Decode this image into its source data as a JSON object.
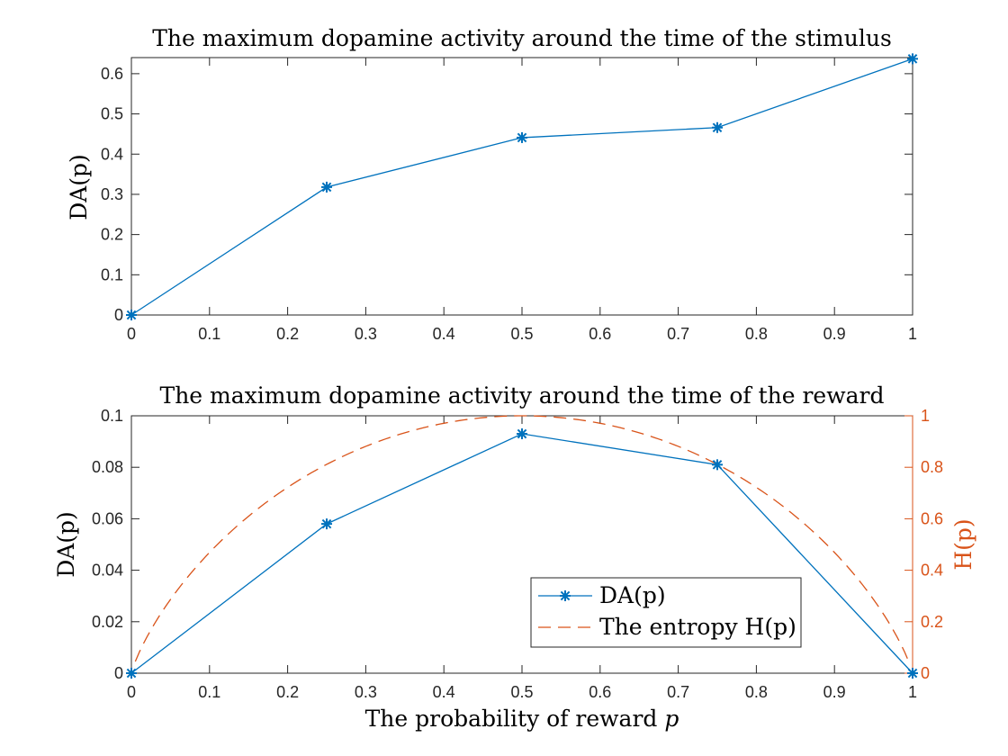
{
  "colors": {
    "da": "#0072BD",
    "entropy": "#D95319",
    "axis": "#000000",
    "box": "#262626"
  },
  "chart_data": [
    {
      "type": "line",
      "title": "The maximum dopamine activity around the time of the stimulus",
      "xlabel": "",
      "ylabel": "DA(p)",
      "xlim": [
        0,
        1
      ],
      "ylim": [
        0,
        0.64
      ],
      "xticks": [
        0,
        0.1,
        0.2,
        0.3,
        0.4,
        0.5,
        0.6,
        0.7,
        0.8,
        0.9,
        1
      ],
      "xtick_labels": [
        "0",
        "0.1",
        "0.2",
        "0.3",
        "0.4",
        "0.5",
        "0.6",
        "0.7",
        "0.8",
        "0.9",
        "1"
      ],
      "yticks": [
        0,
        0.1,
        0.2,
        0.3,
        0.4,
        0.5,
        0.6
      ],
      "ytick_labels": [
        "0",
        "0.1",
        "0.2",
        "0.3",
        "0.4",
        "0.5",
        "0.6"
      ],
      "grid": false,
      "series": [
        {
          "x": [
            0,
            0.25,
            0.5,
            0.75,
            1
          ],
          "values": [
            0,
            0.318,
            0.441,
            0.466,
            0.637
          ],
          "marker": "asterisk"
        }
      ]
    },
    {
      "type": "line",
      "title": "The maximum dopamine activity around the time of the reward",
      "xlabel": "The probability of reward ",
      "xlabel_var": "p",
      "ylabel": "DA(p)",
      "ylabel_right": "H(p)",
      "xlim": [
        0,
        1
      ],
      "ylim": [
        0,
        0.1
      ],
      "ylim_right": [
        0,
        1
      ],
      "xticks": [
        0,
        0.1,
        0.2,
        0.3,
        0.4,
        0.5,
        0.6,
        0.7,
        0.8,
        0.9,
        1
      ],
      "xtick_labels": [
        "0",
        "0.1",
        "0.2",
        "0.3",
        "0.4",
        "0.5",
        "0.6",
        "0.7",
        "0.8",
        "0.9",
        "1"
      ],
      "yticks": [
        0,
        0.02,
        0.04,
        0.06,
        0.08,
        0.1
      ],
      "ytick_labels": [
        "0",
        "0.02",
        "0.04",
        "0.06",
        "0.08",
        "0.1"
      ],
      "yticks_right": [
        0,
        0.2,
        0.4,
        0.6,
        0.8,
        1
      ],
      "ytick_labels_right": [
        "0",
        "0.2",
        "0.4",
        "0.6",
        "0.8",
        "1"
      ],
      "grid": false,
      "legend_location": "bottom-right",
      "series": [
        {
          "name": "DA(p)",
          "axis": "left",
          "x": [
            0,
            0.25,
            0.5,
            0.75,
            1
          ],
          "values": [
            0,
            0.058,
            0.093,
            0.081,
            0
          ],
          "marker": "asterisk"
        },
        {
          "name": "The entropy H(p)",
          "axis": "right",
          "function": "binary_entropy",
          "x_range": [
            0,
            1
          ],
          "style": "dashed"
        }
      ]
    }
  ]
}
